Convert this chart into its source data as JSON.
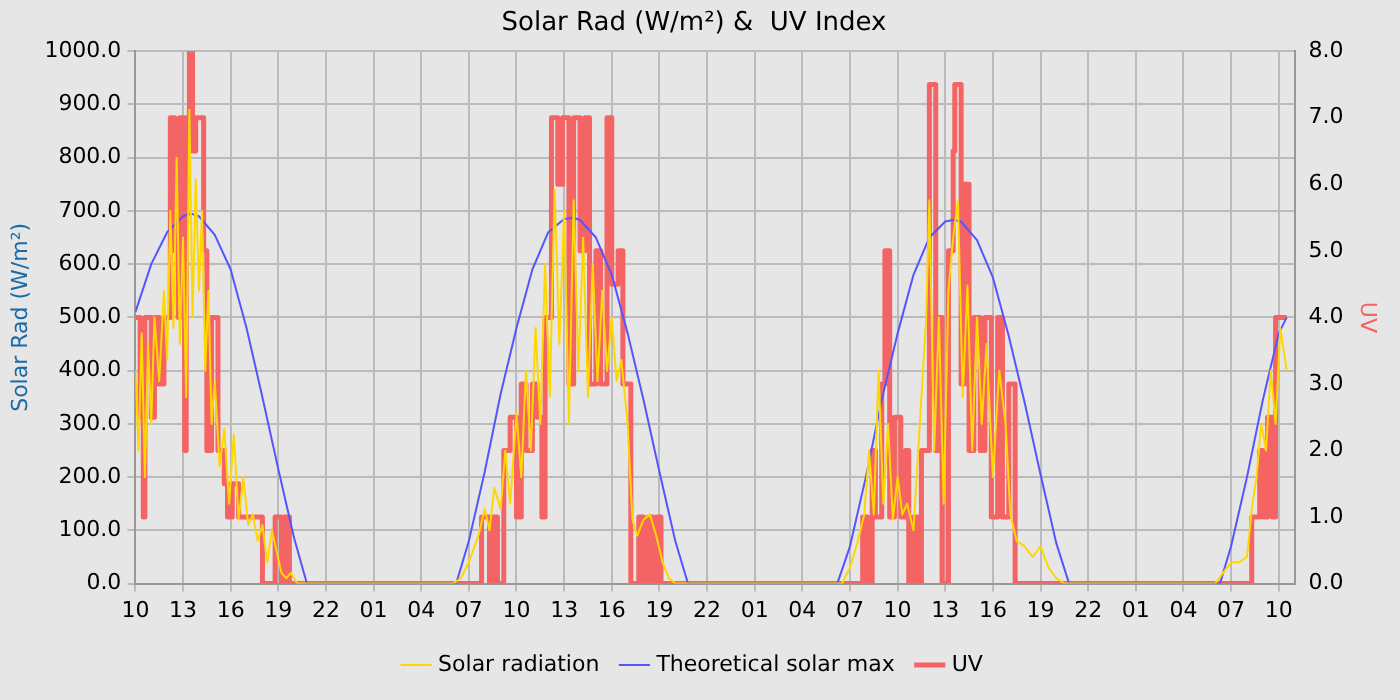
{
  "chart_data": {
    "type": "line",
    "title": "Solar Rad (W/m²) &  UV Index",
    "ylabel": "Solar Rad (W/m²)",
    "y2label": "UV",
    "xlim": [
      "--01-01T10:00",
      "--01-04T11:00"
    ],
    "xticks": [
      {
        "value": "--01-01T10:00",
        "label": "10"
      },
      {
        "value": "--01-01T13:00",
        "label": "13"
      },
      {
        "value": "--01-01T16:00",
        "label": "16"
      },
      {
        "value": "--01-01T19:00",
        "label": "19"
      },
      {
        "value": "--01-01T22:00",
        "label": "22"
      },
      {
        "value": "--01-02T01:00",
        "label": "01"
      },
      {
        "value": "--01-02T04:00",
        "label": "04"
      },
      {
        "value": "--01-02T07:00",
        "label": "07"
      },
      {
        "value": "--01-02T10:00",
        "label": "10"
      },
      {
        "value": "--01-02T13:00",
        "label": "13"
      },
      {
        "value": "--01-02T16:00",
        "label": "16"
      },
      {
        "value": "--01-02T19:00",
        "label": "19"
      },
      {
        "value": "--01-02T22:00",
        "label": "22"
      },
      {
        "value": "--01-03T01:00",
        "label": "01"
      },
      {
        "value": "--01-03T04:00",
        "label": "04"
      },
      {
        "value": "--01-03T07:00",
        "label": "07"
      },
      {
        "value": "--01-03T10:00",
        "label": "10"
      },
      {
        "value": "--01-03T13:00",
        "label": "13"
      },
      {
        "value": "--01-03T16:00",
        "label": "16"
      },
      {
        "value": "--01-03T19:00",
        "label": "19"
      },
      {
        "value": "--01-03T22:00",
        "label": "22"
      },
      {
        "value": "--01-04T01:00",
        "label": "01"
      },
      {
        "value": "--01-04T04:00",
        "label": "04"
      },
      {
        "value": "--01-04T07:00",
        "label": "07"
      },
      {
        "value": "--01-04T10:00",
        "label": "10"
      }
    ],
    "ylim": [
      0,
      1000
    ],
    "yticks": [
      {
        "value": 0,
        "label": "0.0"
      },
      {
        "value": 100,
        "label": "100.0"
      },
      {
        "value": 200,
        "label": "200.0"
      },
      {
        "value": 300,
        "label": "300.0"
      },
      {
        "value": 400,
        "label": "400.0"
      },
      {
        "value": 500,
        "label": "500.0"
      },
      {
        "value": 600,
        "label": "600.0"
      },
      {
        "value": 700,
        "label": "700.0"
      },
      {
        "value": 800,
        "label": "800.0"
      },
      {
        "value": 900,
        "label": "900.0"
      },
      {
        "value": 1000,
        "label": "1000.0"
      }
    ],
    "y2lim": [
      0,
      8
    ],
    "y2ticks": [
      {
        "value": 0,
        "label": "0.0"
      },
      {
        "value": 1,
        "label": "1.0"
      },
      {
        "value": 2,
        "label": "2.0"
      },
      {
        "value": 3,
        "label": "3.0"
      },
      {
        "value": 4,
        "label": "4.0"
      },
      {
        "value": 5,
        "label": "5.0"
      },
      {
        "value": 6,
        "label": "6.0"
      },
      {
        "value": 7,
        "label": "7.0"
      },
      {
        "value": 8,
        "label": "8.0"
      }
    ],
    "grid": true,
    "legend": "bottom",
    "marker": "none",
    "series": [
      {
        "name": "Solar radiation",
        "color": "#ffd700",
        "x": [
          "--01-01T10:00",
          "--01-01T10:12",
          "--01-01T10:24",
          "--01-01T10:36",
          "--01-01T10:48",
          "--01-01T11:00",
          "--01-01T11:12",
          "--01-01T11:30",
          "--01-01T11:48",
          "--01-01T12:00",
          "--01-01T12:12",
          "--01-01T12:24",
          "--01-01T12:36",
          "--01-01T12:48",
          "--01-01T13:00",
          "--01-01T13:12",
          "--01-01T13:24",
          "--01-01T13:36",
          "--01-01T13:48",
          "--01-01T14:00",
          "--01-01T14:12",
          "--01-01T14:24",
          "--01-01T14:36",
          "--01-01T14:48",
          "--01-01T15:00",
          "--01-01T15:18",
          "--01-01T15:36",
          "--01-01T15:54",
          "--01-01T16:12",
          "--01-01T16:30",
          "--01-01T16:48",
          "--01-01T17:06",
          "--01-01T17:24",
          "--01-01T17:42",
          "--01-01T18:00",
          "--01-01T18:18",
          "--01-01T18:36",
          "--01-01T18:54",
          "--01-01T19:12",
          "--01-01T19:30",
          "--01-01T19:48",
          "--01-01T20:12",
          "--01-02T06:00",
          "--01-02T06:30",
          "--01-02T07:00",
          "--01-02T07:36",
          "--01-02T08:00",
          "--01-02T08:18",
          "--01-02T08:36",
          "--01-02T09:00",
          "--01-02T09:18",
          "--01-02T09:36",
          "--01-02T10:00",
          "--01-02T10:18",
          "--01-02T10:36",
          "--01-02T10:54",
          "--01-02T11:12",
          "--01-02T11:30",
          "--01-02T11:48",
          "--01-02T12:06",
          "--01-02T12:24",
          "--01-02T12:42",
          "--01-02T13:00",
          "--01-02T13:18",
          "--01-02T13:36",
          "--01-02T13:54",
          "--01-02T14:12",
          "--01-02T14:30",
          "--01-02T14:48",
          "--01-02T15:06",
          "--01-02T15:24",
          "--01-02T15:42",
          "--01-02T16:00",
          "--01-02T16:18",
          "--01-02T16:36",
          "--01-02T17:00",
          "--01-02T17:18",
          "--01-02T17:36",
          "--01-02T18:00",
          "--01-02T18:24",
          "--01-02T18:48",
          "--01-02T19:12",
          "--01-02T19:36",
          "--01-02T20:00",
          "--01-03T06:30",
          "--01-03T07:00",
          "--01-03T07:30",
          "--01-03T07:54",
          "--01-03T08:12",
          "--01-03T08:30",
          "--01-03T08:48",
          "--01-03T09:06",
          "--01-03T09:24",
          "--01-03T09:42",
          "--01-03T10:00",
          "--01-03T10:18",
          "--01-03T10:36",
          "--01-03T11:00",
          "--01-03T11:24",
          "--01-03T11:48",
          "--01-03T12:00",
          "--01-03T12:18",
          "--01-03T12:36",
          "--01-03T12:54",
          "--01-03T13:12",
          "--01-03T13:30",
          "--01-03T13:48",
          "--01-03T14:06",
          "--01-03T14:24",
          "--01-03T14:42",
          "--01-03T15:00",
          "--01-03T15:18",
          "--01-03T15:36",
          "--01-03T16:00",
          "--01-03T16:24",
          "--01-03T16:48",
          "--01-03T17:06",
          "--01-03T17:30",
          "--01-03T18:00",
          "--01-03T18:30",
          "--01-03T19:00",
          "--01-03T19:30",
          "--01-03T20:00",
          "--01-03T20:30",
          "--01-04T06:00",
          "--01-04T06:30",
          "--01-04T07:00",
          "--01-04T07:30",
          "--01-04T08:00",
          "--01-04T08:18",
          "--01-04T08:36",
          "--01-04T08:54",
          "--01-04T09:12",
          "--01-04T09:30",
          "--01-04T09:48",
          "--01-04T10:06",
          "--01-04T10:30"
        ],
        "values": [
          400,
          250,
          470,
          200,
          450,
          300,
          500,
          380,
          550,
          420,
          700,
          480,
          800,
          450,
          650,
          350,
          890,
          500,
          760,
          550,
          700,
          400,
          550,
          300,
          380,
          220,
          290,
          150,
          280,
          120,
          200,
          110,
          130,
          80,
          110,
          40,
          100,
          60,
          20,
          10,
          20,
          0,
          0,
          10,
          40,
          90,
          140,
          100,
          180,
          140,
          250,
          150,
          320,
          200,
          400,
          250,
          480,
          300,
          600,
          350,
          740,
          450,
          700,
          300,
          720,
          400,
          650,
          350,
          600,
          380,
          550,
          400,
          500,
          380,
          420,
          300,
          120,
          90,
          120,
          130,
          90,
          40,
          10,
          0,
          0,
          30,
          80,
          130,
          250,
          130,
          400,
          150,
          300,
          120,
          200,
          130,
          150,
          100,
          300,
          500,
          720,
          250,
          500,
          150,
          550,
          650,
          720,
          350,
          560,
          250,
          500,
          300,
          450,
          200,
          400,
          300,
          130,
          80,
          70,
          50,
          70,
          30,
          10,
          0,
          0,
          20,
          40,
          40,
          50,
          140,
          200,
          300,
          250,
          400,
          300,
          480,
          400
        ]
      },
      {
        "name": "Theoretical solar max",
        "color": "#5555ff",
        "x": [
          "--01-01T10:00",
          "--01-01T11:00",
          "--01-01T12:00",
          "--01-01T13:00",
          "--01-01T13:30",
          "--01-01T14:00",
          "--01-01T15:00",
          "--01-01T16:00",
          "--01-01T17:00",
          "--01-01T18:00",
          "--01-01T19:00",
          "--01-01T20:00",
          "--01-01T20:48",
          "--01-02T06:12",
          "--01-02T07:00",
          "--01-02T08:00",
          "--01-02T09:00",
          "--01-02T10:00",
          "--01-02T11:00",
          "--01-02T12:00",
          "--01-02T13:00",
          "--01-02T13:36",
          "--01-02T14:00",
          "--01-02T15:00",
          "--01-02T16:00",
          "--01-02T17:00",
          "--01-02T18:00",
          "--01-02T19:00",
          "--01-02T20:00",
          "--01-02T20:48",
          "--01-03T06:12",
          "--01-03T07:00",
          "--01-03T08:00",
          "--01-03T09:00",
          "--01-03T10:00",
          "--01-03T11:00",
          "--01-03T12:00",
          "--01-03T13:00",
          "--01-03T13:30",
          "--01-03T14:00",
          "--01-03T15:00",
          "--01-03T16:00",
          "--01-03T17:00",
          "--01-03T18:00",
          "--01-03T19:00",
          "--01-03T20:00",
          "--01-03T20:48",
          "--01-04T06:18",
          "--01-04T07:00",
          "--01-04T08:00",
          "--01-04T09:00",
          "--01-04T10:00",
          "--01-04T10:30"
        ],
        "values": [
          510,
          600,
          660,
          690,
          695,
          690,
          655,
          590,
          480,
          350,
          215,
          85,
          0,
          0,
          80,
          210,
          356,
          480,
          590,
          660,
          685,
          687,
          683,
          650,
          580,
          470,
          345,
          210,
          80,
          0,
          0,
          70,
          200,
          345,
          470,
          580,
          650,
          680,
          683,
          680,
          645,
          575,
          465,
          340,
          205,
          75,
          0,
          0,
          70,
          200,
          345,
          470,
          500
        ]
      },
      {
        "name": "UV",
        "color": "#f46464",
        "type": "step",
        "axis": "y2",
        "x": [
          "--01-01T10:00",
          "--01-01T10:18",
          "--01-01T10:30",
          "--01-01T10:36",
          "--01-01T11:00",
          "--01-01T11:12",
          "--01-01T11:30",
          "--01-01T11:48",
          "--01-01T12:12",
          "--01-01T12:30",
          "--01-01T12:42",
          "--01-01T12:48",
          "--01-01T13:06",
          "--01-01T13:12",
          "--01-01T13:24",
          "--01-01T13:36",
          "--01-01T13:48",
          "--01-01T14:18",
          "--01-01T14:30",
          "--01-01T14:48",
          "--01-01T15:12",
          "--01-01T15:36",
          "--01-01T15:48",
          "--01-01T16:06",
          "--01-01T16:30",
          "--01-01T17:24",
          "--01-01T18:00",
          "--01-01T18:48",
          "--01-01T19:12",
          "--01-01T19:24",
          "--01-01T19:42",
          "--01-02T07:48",
          "--01-02T08:18",
          "--01-02T08:30",
          "--01-02T08:48",
          "--01-02T09:12",
          "--01-02T09:36",
          "--01-02T10:00",
          "--01-02T10:18",
          "--01-02T10:36",
          "--01-02T11:00",
          "--01-02T11:18",
          "--01-02T11:36",
          "--01-02T11:48",
          "--01-02T12:12",
          "--01-02T12:36",
          "--01-02T12:54",
          "--01-02T13:18",
          "--01-02T13:36",
          "--01-02T14:00",
          "--01-02T14:18",
          "--01-02T14:36",
          "--01-02T15:00",
          "--01-02T15:18",
          "--01-02T15:42",
          "--01-02T16:00",
          "--01-02T16:24",
          "--01-02T16:42",
          "--01-02T17:12",
          "--01-02T17:42",
          "--01-02T18:00",
          "--01-02T18:18",
          "--01-02T18:36",
          "--01-02T18:48",
          "--01-02T19:06",
          "--01-03T07:48",
          "--01-03T08:06",
          "--01-03T08:24",
          "--01-03T08:36",
          "--01-03T09:00",
          "--01-03T09:12",
          "--01-03T09:30",
          "--01-03T09:48",
          "--01-03T10:12",
          "--01-03T10:30",
          "--01-03T10:42",
          "--01-03T11:00",
          "--01-03T11:18",
          "--01-03T11:30",
          "--01-03T12:00",
          "--01-03T12:24",
          "--01-03T12:36",
          "--01-03T12:48",
          "--01-03T13:12",
          "--01-03T13:30",
          "--01-03T13:36",
          "--01-03T14:00",
          "--01-03T14:12",
          "--01-03T14:30",
          "--01-03T14:48",
          "--01-03T15:12",
          "--01-03T15:30",
          "--01-03T15:54",
          "--01-03T16:18",
          "--01-03T16:36",
          "--01-03T17:00",
          "--01-03T17:24",
          "--01-04T08:18",
          "--01-04T08:48",
          "--01-04T09:00",
          "--01-04T09:18",
          "--01-04T09:36",
          "--01-04T09:48",
          "--01-04T10:30"
        ],
        "values": [
          4,
          2.5,
          1,
          4,
          2.5,
          4,
          3,
          4,
          7,
          5,
          4,
          7,
          2,
          7,
          8,
          6.5,
          7,
          5,
          2,
          4,
          2,
          1.5,
          1,
          1.5,
          1,
          1,
          0,
          1,
          0,
          1,
          0,
          1,
          0,
          1,
          0,
          2,
          2.5,
          1,
          3,
          2,
          3,
          2.5,
          1,
          4,
          7,
          6,
          7,
          3,
          7,
          5,
          7,
          3,
          5,
          3,
          7,
          4.5,
          5,
          3,
          0,
          1,
          0,
          1,
          0,
          1,
          0,
          1,
          0,
          2,
          1,
          3,
          5,
          1,
          2.5,
          1,
          2,
          0,
          1,
          0,
          2,
          7.5,
          2,
          4,
          0,
          5,
          6.5,
          7.5,
          3,
          6,
          2,
          4,
          2,
          4,
          1,
          4,
          1,
          3,
          0,
          1,
          2,
          1,
          2.5,
          1,
          4,
          4
        ]
      }
    ]
  }
}
